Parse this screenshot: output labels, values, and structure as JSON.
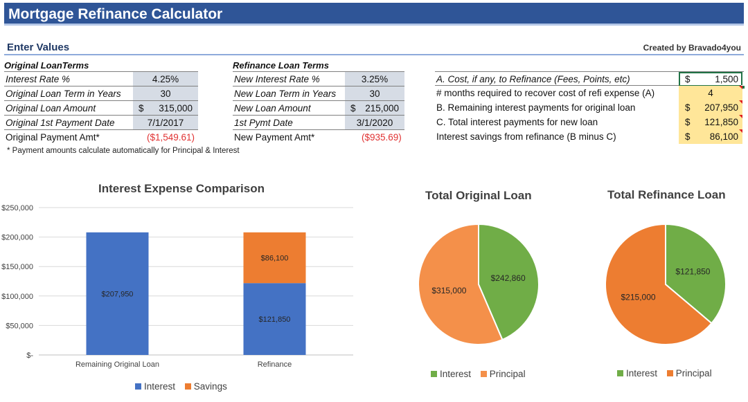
{
  "header": {
    "title": "Mortgage Refinance Calculator"
  },
  "section": {
    "enter_values": "Enter Values",
    "credit": "Created by Bravado4you"
  },
  "original": {
    "heading": "Original LoanTerms",
    "rows": [
      {
        "label": "Interest Rate %",
        "value": "4.25%"
      },
      {
        "label": "Original Loan Term in Years",
        "value": "30"
      },
      {
        "label": "Original Loan Amount",
        "dollar": "$",
        "value": "315,000"
      },
      {
        "label": "Original 1st Payment Date",
        "value": "7/1/2017"
      }
    ],
    "payment_label": "Original Payment Amt*",
    "payment_value": "($1,549.61)"
  },
  "refinance": {
    "heading": "Refinance Loan Terms",
    "rows": [
      {
        "label": "New Interest Rate %",
        "value": "3.25%"
      },
      {
        "label": "New Loan Term in Years",
        "value": "30"
      },
      {
        "label": "New Loan Amount",
        "dollar": "$",
        "value": "215,000"
      },
      {
        "label": "1st Pymt Date",
        "value": "3/1/2020"
      }
    ],
    "payment_label": "New Payment Amt*",
    "payment_value": "($935.69)"
  },
  "summary": {
    "rows": [
      {
        "label": "A. Cost, if any, to Refinance (Fees, Points, etc)",
        "dollar": "$",
        "value": "1,500"
      },
      {
        "label": "# months required to recover cost of refi expense (A)",
        "value": "4"
      },
      {
        "label": "B. Remaining interest payments for original loan",
        "dollar": "$",
        "value": "207,950"
      },
      {
        "label": "C. Total interest payments for new loan",
        "dollar": "$",
        "value": "121,850"
      },
      {
        "label": "Interest savings from refinance (B minus C)",
        "dollar": "$",
        "value": "86,100"
      }
    ]
  },
  "footnote": "* Payment amounts calculate automatically for Principal & Interest",
  "colors": {
    "interest_bar": "#4472c4",
    "savings_bar": "#ed7d31",
    "pie_interest": "#70ad47",
    "pie_principal_1": "#f4904a",
    "pie_principal_2": "#ed7d31"
  },
  "chart_data": [
    {
      "type": "bar",
      "title": "Interest Expense Comparison",
      "categories": [
        "Remaining Original Loan",
        "Refinance"
      ],
      "series": [
        {
          "name": "Interest",
          "values": [
            207950,
            121850
          ],
          "labels": [
            "$207,950",
            "$121,850"
          ]
        },
        {
          "name": "Savings",
          "values": [
            0,
            86100
          ],
          "labels": [
            "",
            "$86,100"
          ]
        }
      ],
      "stacked": true,
      "yticks": [
        "$-",
        "$50,000",
        "$100,000",
        "$150,000",
        "$200,000",
        "$250,000"
      ],
      "ylim": [
        0,
        250000
      ],
      "legend": "bottom"
    },
    {
      "type": "pie",
      "title": "Total Original Loan",
      "slices": [
        {
          "name": "Interest",
          "value": 242860,
          "label": "$242,860"
        },
        {
          "name": "Principal",
          "value": 315000,
          "label": "$315,000"
        }
      ],
      "legend": "bottom"
    },
    {
      "type": "pie",
      "title": "Total Refinance Loan",
      "slices": [
        {
          "name": "Interest",
          "value": 121850,
          "label": "$121,850"
        },
        {
          "name": "Principal",
          "value": 215000,
          "label": "$215,000"
        }
      ],
      "legend": "bottom"
    }
  ]
}
